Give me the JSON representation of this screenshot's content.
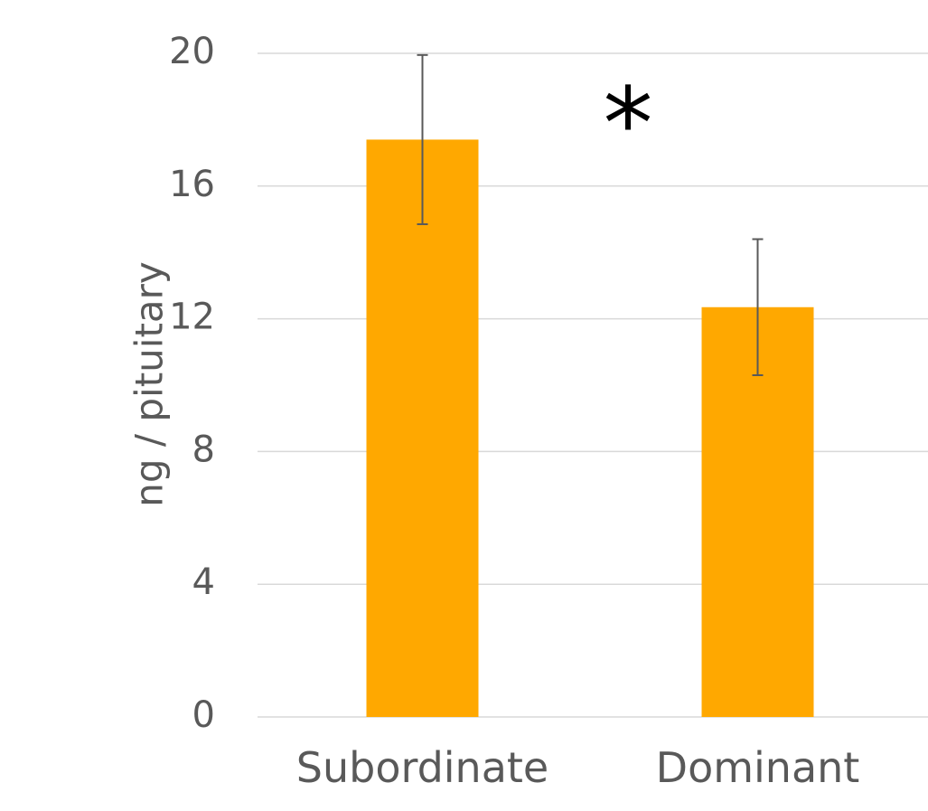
{
  "chart_data": {
    "type": "bar",
    "categories": [
      "Subordinate",
      "Dominant"
    ],
    "values": [
      17.4,
      12.35
    ],
    "error": [
      2.55,
      2.05
    ],
    "ylabel": "ng / pituitary",
    "xlabel": "",
    "ylim": [
      0,
      20
    ],
    "yticks": [
      "0",
      "4",
      "8",
      "12",
      "16",
      "20"
    ],
    "annotation": "*",
    "grid": true,
    "legend": "none",
    "colors": {
      "bar": "#FFA800",
      "grid": "#D9D9D9",
      "text": "#595959",
      "errorbar": "#595959"
    }
  }
}
